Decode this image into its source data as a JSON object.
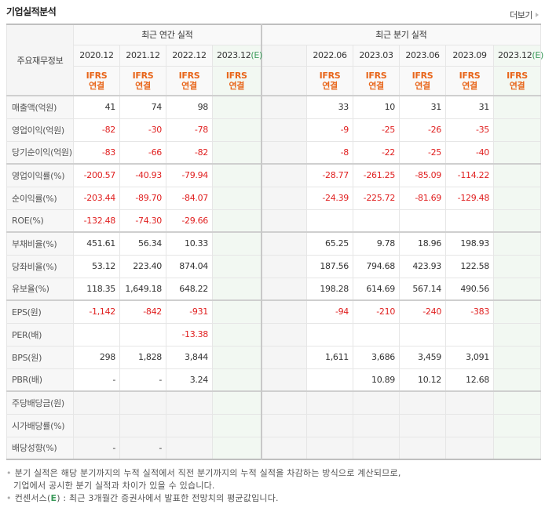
{
  "header": {
    "title": "기업실적분석",
    "more_label": "더보기"
  },
  "table": {
    "row_header": "주요재무정보",
    "annual_group": "최근 연간 실적",
    "quarter_group": "최근 분기 실적",
    "annual_periods": [
      "2020.12",
      "2021.12",
      "2022.12",
      "2023.12"
    ],
    "quarter_periods": [
      "2022.06",
      "2023.03",
      "2023.06",
      "2023.09",
      "2023.12"
    ],
    "estimate_marker": "(E)",
    "basis_line1": "IFRS",
    "basis_line2": "연결",
    "rows": [
      {
        "label": "매출액(억원)",
        "annual": [
          "41",
          "74",
          "98",
          ""
        ],
        "quarter": [
          "33",
          "10",
          "31",
          "31",
          ""
        ]
      },
      {
        "label": "영업이익(억원)",
        "annual": [
          "-82",
          "-30",
          "-78",
          ""
        ],
        "quarter": [
          "-9",
          "-25",
          "-26",
          "-35",
          ""
        ]
      },
      {
        "label": "당기순이익(억원)",
        "annual": [
          "-83",
          "-66",
          "-82",
          ""
        ],
        "quarter": [
          "-8",
          "-22",
          "-25",
          "-40",
          ""
        ]
      },
      {
        "label": "영업이익률(%)",
        "annual": [
          "-200.57",
          "-40.93",
          "-79.94",
          ""
        ],
        "quarter": [
          "-28.77",
          "-261.25",
          "-85.09",
          "-114.22",
          ""
        ]
      },
      {
        "label": "순이익률(%)",
        "annual": [
          "-203.44",
          "-89.70",
          "-84.07",
          ""
        ],
        "quarter": [
          "-24.39",
          "-225.72",
          "-81.69",
          "-129.48",
          ""
        ]
      },
      {
        "label": "ROE(%)",
        "annual": [
          "-132.48",
          "-74.30",
          "-29.66",
          ""
        ],
        "quarter": [
          "",
          "",
          "",
          "",
          ""
        ]
      },
      {
        "label": "부채비율(%)",
        "annual": [
          "451.61",
          "56.34",
          "10.33",
          ""
        ],
        "quarter": [
          "65.25",
          "9.78",
          "18.96",
          "198.93",
          ""
        ]
      },
      {
        "label": "당좌비율(%)",
        "annual": [
          "53.12",
          "223.40",
          "874.04",
          ""
        ],
        "quarter": [
          "187.56",
          "794.68",
          "423.93",
          "122.58",
          ""
        ]
      },
      {
        "label": "유보율(%)",
        "annual": [
          "118.35",
          "1,649.18",
          "648.22",
          ""
        ],
        "quarter": [
          "198.28",
          "614.69",
          "567.14",
          "490.56",
          ""
        ]
      },
      {
        "label": "EPS(원)",
        "annual": [
          "-1,142",
          "-842",
          "-931",
          ""
        ],
        "quarter": [
          "-94",
          "-210",
          "-240",
          "-383",
          ""
        ]
      },
      {
        "label": "PER(배)",
        "annual": [
          "",
          "",
          "-13.38",
          ""
        ],
        "quarter": [
          "",
          "",
          "",
          "",
          ""
        ]
      },
      {
        "label": "BPS(원)",
        "annual": [
          "298",
          "1,828",
          "3,844",
          ""
        ],
        "quarter": [
          "1,611",
          "3,686",
          "3,459",
          "3,091",
          ""
        ]
      },
      {
        "label": "PBR(배)",
        "annual": [
          "-",
          "-",
          "3.24",
          ""
        ],
        "quarter": [
          "",
          "10.89",
          "10.12",
          "12.68",
          ""
        ]
      },
      {
        "label": "주당배당금(원)",
        "annual": [
          "",
          "",
          "",
          ""
        ],
        "quarter": [
          "",
          "",
          "",
          "",
          ""
        ]
      },
      {
        "label": "시가배당률(%)",
        "annual": [
          "",
          "",
          "",
          ""
        ],
        "quarter": [
          "",
          "",
          "",
          "",
          ""
        ]
      },
      {
        "label": "배당성향(%)",
        "annual": [
          "-",
          "-",
          "",
          ""
        ],
        "quarter": [
          "",
          "",
          "",
          "",
          ""
        ]
      }
    ]
  },
  "notes": {
    "line1": "분기 실적은 해당 분기까지의 누적 실적에서 직전 분기까지의 누적 실적을 차감하는 방식으로 계산되므로,",
    "line2": "기업에서 공시한 분기 실적과 차이가 있을 수 있습니다.",
    "line3_prefix": "컨센서스(",
    "line3_e": "E",
    "line3_suffix": ") : 최근 3개월간 증권사에서 발표한 전망치의 평균값입니다."
  },
  "colors": {
    "negative": "#e02020",
    "ifrs": "#e8651a",
    "estimate": "#3a9a5a",
    "estimate_bg": "#f2f8f2"
  }
}
